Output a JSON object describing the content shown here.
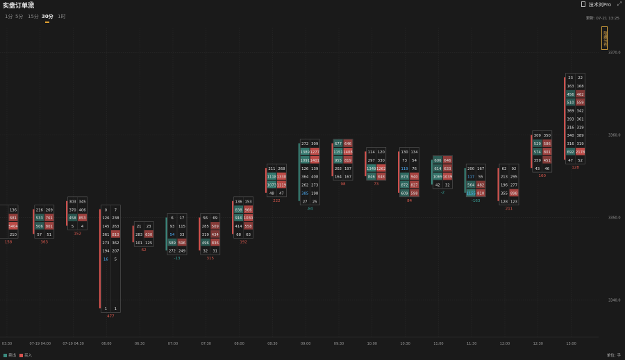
{
  "header": {
    "title": "实盘订单流",
    "brand": "技术刘Pro",
    "update_label": "更新: 07-21 13:25",
    "side_toggle": "隐藏分布"
  },
  "tabs": [
    {
      "label": "1分",
      "active": false
    },
    {
      "label": "5分",
      "active": false
    },
    {
      "label": "15分",
      "active": false
    },
    {
      "label": "30分",
      "active": true
    },
    {
      "label": "1时",
      "active": false
    }
  ],
  "legend": {
    "sell_label": "卖出",
    "buy_label": "买入",
    "sell_color": "#3a8a7e",
    "buy_color": "#d9534f",
    "unit_label": "单位: 手"
  },
  "colors": {
    "sell": "#3a8a7e",
    "buy": "#d9534f",
    "positive_delta": "#e05a4f",
    "negative_delta": "#3aa9a0"
  },
  "chart_data": {
    "type": "table",
    "description_of_axes": "footprint",
    "x_labels": [
      "03:30",
      "07-19 04:00",
      "07-19 04:30",
      "06:00",
      "06:30",
      "07:00",
      "07:30",
      "08:00",
      "08:30",
      "09:00",
      "09:30",
      "10:00",
      "10:30",
      "11:00",
      "11:30",
      "12:00",
      "12:30",
      "13:00"
    ],
    "price_ticks": [
      3370.0,
      3360.0,
      3350.0,
      3340.0
    ],
    "y_range": [
      3335.5,
      3373.0
    ],
    "candles": [
      {
        "x": "03:30",
        "top": 3351.5,
        "delta": "158",
        "rows": [
          [
            "",
            "136"
          ],
          [
            "",
            "681"
          ],
          [
            "",
            "5404"
          ],
          [
            "",
            "210"
          ]
        ]
      },
      {
        "x": "07-19 04:00",
        "top": 3351.5,
        "delta": "363",
        "rows": [
          [
            "216",
            "269"
          ],
          [
            "533",
            "761"
          ],
          [
            "506",
            "801"
          ],
          [
            "57",
            "51"
          ]
        ]
      },
      {
        "x": "07-19 04:30",
        "top": 3352.5,
        "delta": "152",
        "rows": [
          [
            "303",
            "345"
          ],
          [
            "370",
            "406"
          ],
          [
            "458",
            "853"
          ],
          [
            "5",
            "4"
          ]
        ]
      },
      {
        "x": "06:00",
        "top": 3351.5,
        "delta": "477",
        "rows": [
          [
            "0",
            "7"
          ],
          [
            "126",
            "238"
          ],
          [
            "145",
            "263"
          ],
          [
            "361",
            "810"
          ],
          [
            "273",
            "362"
          ],
          [
            "194",
            "207"
          ],
          [
            "16",
            "5"
          ],
          [
            "",
            ""
          ],
          [
            "",
            ""
          ],
          [
            "",
            ""
          ],
          [
            "",
            ""
          ],
          [
            "",
            ""
          ],
          [
            "1",
            "1"
          ]
        ]
      },
      {
        "x": "06:30",
        "top": 3349.5,
        "delta": "62",
        "rows": [
          [
            "21",
            "23"
          ],
          [
            "283",
            "630"
          ],
          [
            "101",
            "125"
          ]
        ]
      },
      {
        "x": "07:00",
        "top": 3350.5,
        "delta": "-13",
        "rows": [
          [
            "6",
            "17"
          ],
          [
            "93",
            "115"
          ],
          [
            "54",
            "33"
          ],
          [
            "589",
            "596"
          ],
          [
            "272",
            "249"
          ]
        ]
      },
      {
        "x": "07:30",
        "top": 3350.5,
        "delta": "315",
        "rows": [
          [
            "56",
            "69"
          ],
          [
            "285",
            "509"
          ],
          [
            "319",
            "434"
          ],
          [
            "496",
            "836"
          ],
          [
            "32",
            "31"
          ]
        ]
      },
      {
        "x": "08:00",
        "top": 3352.5,
        "delta": "192",
        "rows": [
          [
            "136",
            "153"
          ],
          [
            "838",
            "966"
          ],
          [
            "916",
            "1030"
          ],
          [
            "414",
            "558"
          ],
          [
            "68",
            "63"
          ]
        ]
      },
      {
        "x": "08:30",
        "top": 3356.5,
        "delta": "222",
        "rows": [
          [
            "211",
            "268"
          ],
          [
            "1118",
            "1330"
          ],
          [
            "1073",
            "1119"
          ],
          [
            "48",
            "47"
          ]
        ]
      },
      {
        "x": "09:00",
        "top": 3359.5,
        "delta": "-84",
        "rows": [
          [
            "272",
            "309"
          ],
          [
            "1389",
            "1277"
          ],
          [
            "1091",
            "1401"
          ],
          [
            "126",
            "139"
          ],
          [
            "364",
            "408"
          ],
          [
            "262",
            "273"
          ],
          [
            "385",
            "198"
          ],
          [
            "27",
            "25"
          ]
        ]
      },
      {
        "x": "09:30",
        "top": 3359.5,
        "delta": "98",
        "rows": [
          [
            "677",
            "646"
          ],
          [
            "1151",
            "1408"
          ],
          [
            "955",
            "819"
          ],
          [
            "202",
            "197"
          ],
          [
            "164",
            "167"
          ]
        ]
      },
      {
        "x": "10:00",
        "top": 3358.5,
        "delta": "73",
        "rows": [
          [
            "114",
            "120"
          ],
          [
            "297",
            "330"
          ],
          [
            "1349",
            "1262"
          ],
          [
            "846",
            "848"
          ]
        ]
      },
      {
        "x": "10:30",
        "top": 3358.5,
        "delta": "84",
        "rows": [
          [
            "130",
            "134"
          ],
          [
            "73",
            "54"
          ],
          [
            "119",
            "76"
          ],
          [
            "873",
            "940"
          ],
          [
            "872",
            "827"
          ],
          [
            "609",
            "598"
          ]
        ]
      },
      {
        "x": "11:00",
        "top": 3357.5,
        "delta": "-2",
        "rows": [
          [
            "606",
            "646"
          ],
          [
            "614",
            "633"
          ],
          [
            "1069",
            "1039"
          ],
          [
            "42",
            "32"
          ]
        ]
      },
      {
        "x": "11:30",
        "top": 3356.5,
        "delta": "-163",
        "rows": [
          [
            "200",
            "167"
          ],
          [
            "117",
            "55"
          ],
          [
            "564",
            "482"
          ],
          [
            "1155",
            "810"
          ]
        ]
      },
      {
        "x": "12:00",
        "top": 3356.5,
        "delta": "211",
        "rows": [
          [
            "62",
            "92"
          ],
          [
            "213",
            "295"
          ],
          [
            "196",
            "277"
          ],
          [
            "355",
            "898"
          ],
          [
            "128",
            "123"
          ]
        ]
      },
      {
        "x": "12:30",
        "top": 3360.5,
        "delta": "160",
        "rows": [
          [
            "309",
            "350"
          ],
          [
            "529",
            "586"
          ],
          [
            "574",
            "801"
          ],
          [
            "359",
            "451"
          ],
          [
            "43",
            "46"
          ]
        ]
      },
      {
        "x": "13:00",
        "top": 3367.5,
        "delta": "128",
        "rows": [
          [
            "23",
            "22"
          ],
          [
            "163",
            "168"
          ],
          [
            "456",
            "462"
          ],
          [
            "510",
            "559"
          ],
          [
            "369",
            "342"
          ],
          [
            "393",
            "361"
          ],
          [
            "316",
            "319"
          ],
          [
            "340",
            "389"
          ],
          [
            "316",
            "319"
          ],
          [
            "692",
            "2178"
          ],
          [
            "47",
            "52"
          ]
        ]
      }
    ]
  }
}
